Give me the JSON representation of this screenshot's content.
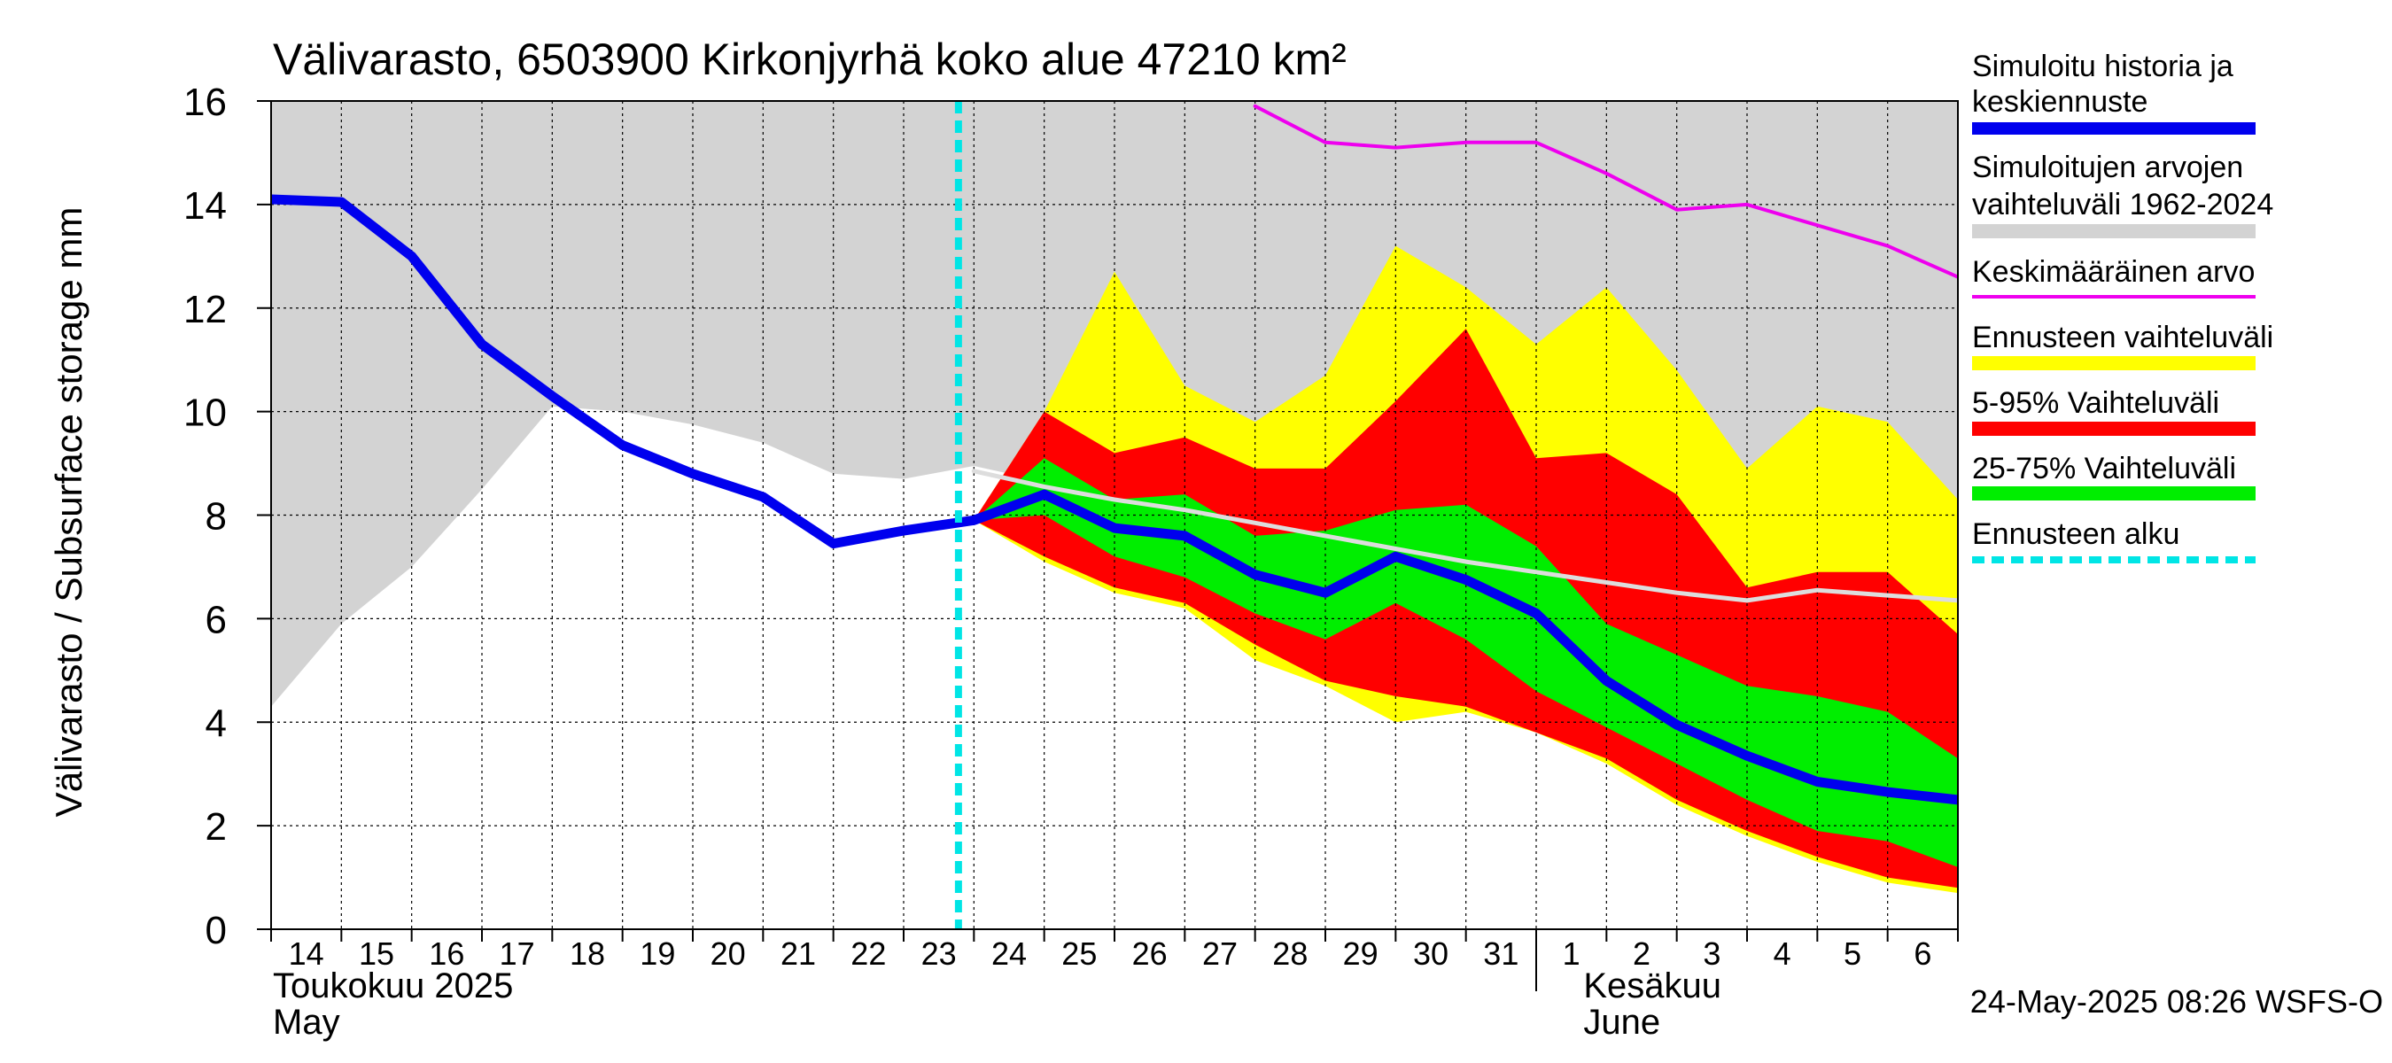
{
  "chart_data": {
    "type": "area",
    "title": "Välivarasto, 6503900 Kirkonjyrhä koko alue 47210 km²",
    "ylabel": "Välivarasto / Subsurface storage  mm",
    "ylim": [
      0,
      16
    ],
    "yticks": [
      0,
      2,
      4,
      6,
      8,
      10,
      12,
      14,
      16
    ],
    "grid": true,
    "legend_position": "right",
    "x_dates": [
      "2025-05-14",
      "2025-05-15",
      "2025-05-16",
      "2025-05-17",
      "2025-05-18",
      "2025-05-19",
      "2025-05-20",
      "2025-05-21",
      "2025-05-22",
      "2025-05-23",
      "2025-05-24",
      "2025-05-25",
      "2025-05-26",
      "2025-05-27",
      "2025-05-28",
      "2025-05-29",
      "2025-05-30",
      "2025-05-31",
      "2025-06-01",
      "2025-06-02",
      "2025-06-03",
      "2025-06-04",
      "2025-06-05",
      "2025-06-06",
      "2025-06-07"
    ],
    "x_tick_labels": [
      "14",
      "15",
      "16",
      "17",
      "18",
      "19",
      "20",
      "21",
      "22",
      "23",
      "24",
      "25",
      "26",
      "27",
      "28",
      "29",
      "30",
      "31",
      "1",
      "2",
      "3",
      "4",
      "5",
      "6"
    ],
    "month_labels": [
      {
        "line1": "Toukokuu  2025",
        "line2": "May"
      },
      {
        "line1": "Kesäkuu",
        "line2": "June"
      }
    ],
    "forecast_start": "2025-05-24",
    "colors": {
      "history": "#0000ee",
      "hist_range": "#d3d3d3",
      "mean": "#ee00ee",
      "forecast_range": "#ffff00",
      "p5_95": "#ff0000",
      "p25_75": "#00ee00",
      "forecast_start": "#00e5e5",
      "median_line": "#dddddd"
    },
    "series": {
      "hist_max": [
        16,
        16,
        16,
        16,
        16,
        16,
        16,
        16,
        16,
        16,
        16,
        16,
        16,
        16,
        16,
        16,
        16,
        16,
        16,
        16,
        16,
        16,
        16,
        16,
        16
      ],
      "hist_min": [
        4.3,
        5.9,
        7.0,
        8.5,
        10.1,
        10.0,
        9.75,
        9.4,
        8.8,
        8.7,
        8.95,
        8.65,
        8.3,
        8.1,
        7.85,
        7.6,
        7.35,
        7.1,
        6.9,
        6.7,
        6.5,
        6.35,
        6.55,
        6.45,
        6.35
      ],
      "mean": [
        null,
        null,
        null,
        null,
        null,
        null,
        null,
        null,
        null,
        null,
        null,
        null,
        null,
        null,
        15.9,
        15.2,
        15.1,
        15.2,
        15.2,
        14.6,
        13.9,
        14.0,
        13.6,
        13.2,
        12.6
      ],
      "forecast_max": [
        null,
        null,
        null,
        null,
        null,
        null,
        null,
        null,
        null,
        7.95,
        7.9,
        10.0,
        12.7,
        10.5,
        9.8,
        10.7,
        13.2,
        12.4,
        11.3,
        12.4,
        10.8,
        8.9,
        10.1,
        9.8,
        8.3
      ],
      "forecast_min": [
        null,
        null,
        null,
        null,
        null,
        null,
        null,
        null,
        null,
        7.95,
        7.9,
        7.1,
        6.5,
        6.2,
        5.2,
        4.7,
        4.0,
        4.2,
        3.8,
        3.2,
        2.4,
        1.8,
        1.3,
        0.9,
        0.7
      ],
      "p95": [
        null,
        null,
        null,
        null,
        null,
        null,
        null,
        null,
        null,
        7.95,
        7.9,
        10.0,
        9.2,
        9.5,
        8.9,
        8.9,
        10.2,
        11.6,
        9.1,
        9.2,
        8.4,
        6.6,
        6.9,
        6.9,
        5.7
      ],
      "p5": [
        null,
        null,
        null,
        null,
        null,
        null,
        null,
        null,
        null,
        7.95,
        7.9,
        7.2,
        6.6,
        6.3,
        5.5,
        4.8,
        4.5,
        4.3,
        3.8,
        3.3,
        2.5,
        1.9,
        1.4,
        1.0,
        0.8
      ],
      "p75": [
        null,
        null,
        null,
        null,
        null,
        null,
        null,
        null,
        null,
        7.95,
        7.9,
        9.1,
        8.3,
        8.4,
        7.6,
        7.7,
        8.1,
        8.2,
        7.4,
        5.9,
        5.3,
        4.7,
        4.5,
        4.2,
        3.3
      ],
      "p25": [
        null,
        null,
        null,
        null,
        null,
        null,
        null,
        null,
        null,
        7.95,
        7.9,
        8.0,
        7.2,
        6.8,
        6.1,
        5.6,
        6.3,
        5.6,
        4.6,
        3.9,
        3.2,
        2.5,
        1.9,
        1.7,
        1.2
      ],
      "history": [
        14.1,
        14.05,
        13.0,
        11.3,
        10.3,
        9.35,
        8.8,
        8.35,
        7.45,
        7.7,
        7.9,
        8.4,
        7.75,
        7.6,
        6.85,
        6.5,
        7.2,
        6.75,
        6.1,
        4.8,
        3.95,
        3.35,
        2.85,
        2.65,
        2.5
      ],
      "median_forecast": [
        null,
        null,
        null,
        null,
        null,
        null,
        null,
        null,
        null,
        null,
        8.85,
        8.55,
        8.3,
        8.1,
        7.85,
        7.6,
        7.35,
        7.1,
        6.9,
        6.7,
        6.5,
        6.35,
        6.55,
        6.45,
        6.35
      ]
    },
    "legend": [
      {
        "label": "Simuloitu historia ja keskiennuste",
        "color_key": "history",
        "style": "thick"
      },
      {
        "label": "Simuloitujen arvojen vaihteluväli 1962-2024",
        "color_key": "hist_range",
        "style": "band"
      },
      {
        "label": "Keskimääräinen arvo",
        "color_key": "mean",
        "style": "thin"
      },
      {
        "label": "Ennusteen vaihteluväli",
        "color_key": "forecast_range",
        "style": "band"
      },
      {
        "label": "5-95% Vaihteluväli",
        "color_key": "p5_95",
        "style": "band"
      },
      {
        "label": "25-75% Vaihteluväli",
        "color_key": "p25_75",
        "style": "band"
      },
      {
        "label": "Ennusteen alku",
        "color_key": "forecast_start",
        "style": "dashed"
      }
    ],
    "footer": "24-May-2025 08:26 WSFS-O"
  }
}
